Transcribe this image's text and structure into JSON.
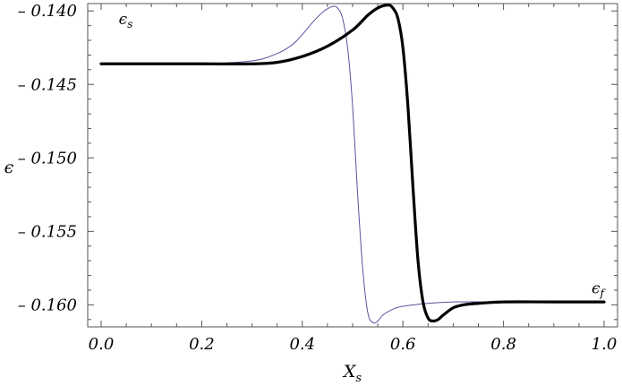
{
  "chart_data": {
    "type": "line",
    "title": "",
    "xlabel": {
      "main": "X",
      "sub": "s"
    },
    "ylabel": "ϵ",
    "xlim": [
      0.0,
      1.0
    ],
    "ylim": [
      -0.1615,
      -0.1395
    ],
    "grid": false,
    "x_ticks": [
      0.0,
      0.2,
      0.4,
      0.6,
      0.8,
      1.0
    ],
    "x_tick_labels": [
      "0.0",
      "0.2",
      "0.4",
      "0.6",
      "0.8",
      "1.0"
    ],
    "y_ticks": [
      -0.14,
      -0.145,
      -0.15,
      -0.155,
      -0.16
    ],
    "y_tick_labels": [
      "– 0.140",
      "– 0.145",
      "– 0.150",
      "– 0.155",
      "– 0.160"
    ],
    "annotations": [
      {
        "main": "ϵ",
        "sub": "s",
        "x": 0.035,
        "y": -0.1409
      },
      {
        "main": "ϵ",
        "sub": "f",
        "x": 0.975,
        "y": -0.1592
      }
    ],
    "series": [
      {
        "color": "#5555a0",
        "style": "thin",
        "x": [
          0.0,
          0.1,
          0.2,
          0.3,
          0.35,
          0.38,
          0.4,
          0.42,
          0.44,
          0.46,
          0.47,
          0.48,
          0.49,
          0.5,
          0.51,
          0.52,
          0.53,
          0.54,
          0.55,
          0.56,
          0.58,
          0.6,
          0.65,
          0.7,
          0.8,
          0.9,
          1.0
        ],
        "y": [
          -0.1436,
          -0.1436,
          -0.1436,
          -0.1434,
          -0.1429,
          -0.1423,
          -0.1416,
          -0.1408,
          -0.1401,
          -0.1397,
          -0.1398,
          -0.1405,
          -0.1425,
          -0.1465,
          -0.1525,
          -0.1575,
          -0.1605,
          -0.1612,
          -0.1611,
          -0.1607,
          -0.1603,
          -0.1601,
          -0.1599,
          -0.1598,
          -0.1598,
          -0.1598,
          -0.1598
        ]
      },
      {
        "color": "#000000",
        "style": "thick",
        "x": [
          0.0,
          0.1,
          0.2,
          0.3,
          0.35,
          0.4,
          0.45,
          0.5,
          0.53,
          0.55,
          0.57,
          0.58,
          0.59,
          0.6,
          0.61,
          0.62,
          0.63,
          0.64,
          0.65,
          0.66,
          0.67,
          0.68,
          0.7,
          0.72,
          0.75,
          0.8,
          0.9,
          1.0
        ],
        "y": [
          -0.1436,
          -0.1436,
          -0.1436,
          -0.1436,
          -0.1435,
          -0.1431,
          -0.1424,
          -0.1413,
          -0.1403,
          -0.1398,
          -0.1396,
          -0.1398,
          -0.1405,
          -0.1425,
          -0.1465,
          -0.152,
          -0.157,
          -0.1598,
          -0.1609,
          -0.1611,
          -0.161,
          -0.1607,
          -0.1602,
          -0.16,
          -0.1599,
          -0.1598,
          -0.1598,
          -0.1598
        ]
      }
    ]
  }
}
